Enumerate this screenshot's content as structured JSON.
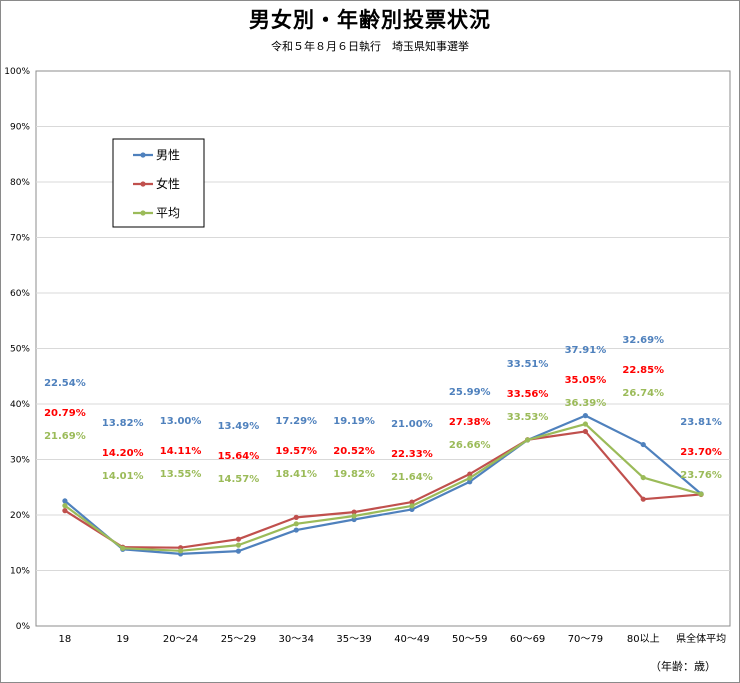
{
  "title": "男女別・年齢別投票状況",
  "subtitle": "令和５年８月６日執行　埼玉県知事選挙",
  "unit_note": "（年齢：歳）",
  "chart_data": {
    "type": "line",
    "categories": [
      "18",
      "19",
      "20～24",
      "25～29",
      "30～34",
      "35～39",
      "40～49",
      "50～59",
      "60～69",
      "70～79",
      "80以上",
      "県全体平均"
    ],
    "ylim": [
      0,
      100
    ],
    "y_ticks": [
      "0%",
      "10%",
      "20%",
      "30%",
      "40%",
      "50%",
      "60%",
      "70%",
      "80%",
      "90%",
      "100%"
    ],
    "grid": true,
    "legend_position": "top-left",
    "series": [
      {
        "name": "男性",
        "color": "#4f81bd",
        "values": [
          22.54,
          13.82,
          13.0,
          13.49,
          17.29,
          19.19,
          21.0,
          25.99,
          33.51,
          37.91,
          32.69,
          23.81
        ],
        "labels": [
          "22.54%",
          "13.82%",
          "13.00%",
          "13.49%",
          "17.29%",
          "19.19%",
          "21.00%",
          "25.99%",
          "33.51%",
          "37.91%",
          "32.69%",
          "23.81%"
        ]
      },
      {
        "name": "女性",
        "color": "#c0504d",
        "label_color": "#ff0000",
        "values": [
          20.79,
          14.2,
          14.11,
          15.64,
          19.57,
          20.52,
          22.33,
          27.38,
          33.56,
          35.05,
          22.85,
          23.7
        ],
        "labels": [
          "20.79%",
          "14.20%",
          "14.11%",
          "15.64%",
          "19.57%",
          "20.52%",
          "22.33%",
          "27.38%",
          "33.56%",
          "35.05%",
          "22.85%",
          "23.70%"
        ]
      },
      {
        "name": "平均",
        "color": "#9bbb59",
        "values": [
          21.69,
          14.01,
          13.55,
          14.57,
          18.41,
          19.82,
          21.64,
          26.66,
          33.53,
          36.39,
          26.74,
          23.76
        ],
        "labels": [
          "21.69%",
          "14.01%",
          "13.55%",
          "14.57%",
          "18.41%",
          "19.82%",
          "21.64%",
          "26.66%",
          "33.53%",
          "36.39%",
          "26.74%",
          "23.76%"
        ]
      }
    ]
  }
}
